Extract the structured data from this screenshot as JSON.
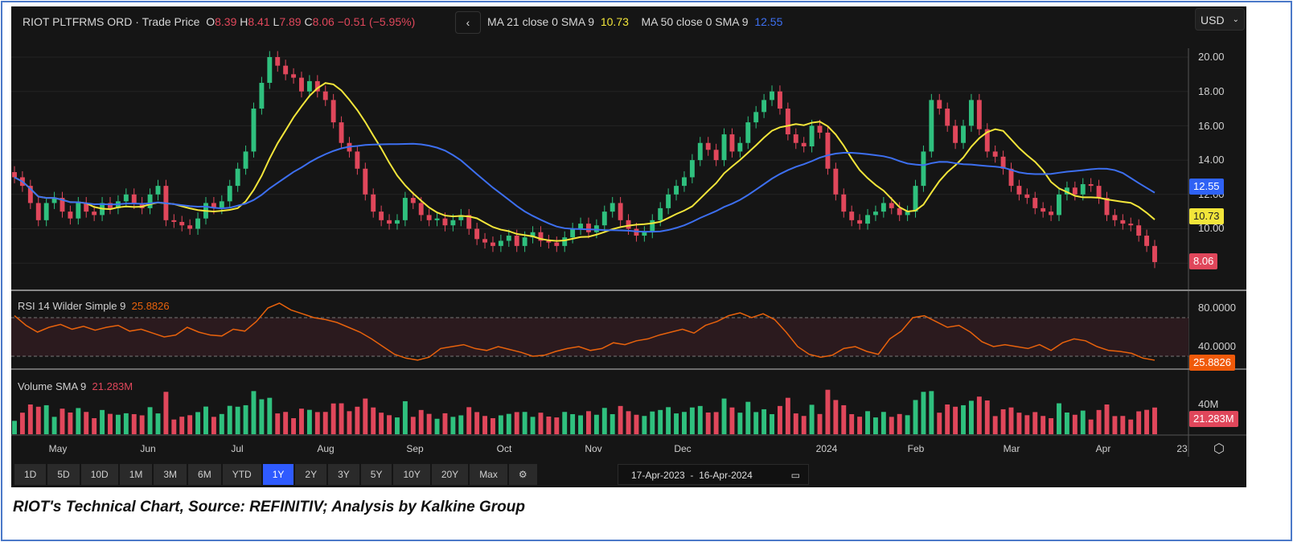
{
  "header": {
    "symbol": "RIOT PLTFRMS ORD",
    "price_type": "Trade Price",
    "o_label": "O",
    "o": "8.39",
    "h_label": "H",
    "h": "8.41",
    "l_label": "L",
    "l": "7.89",
    "c_label": "C",
    "c": "8.06",
    "change": "−0.51 (−5.95%)",
    "collapse": "‹",
    "ma1_label": "MA 21 close 0 SMA 9",
    "ma1_value": "10.73",
    "ma2_label": "MA 50 close 0 SMA 9",
    "ma2_value": "12.55"
  },
  "currency": "USD",
  "price_axis": [
    "20.00",
    "18.00",
    "16.00",
    "14.00",
    "12.00",
    "10.00"
  ],
  "price_tags": {
    "ma50": "12.55",
    "ma21": "10.73",
    "last": "8.06"
  },
  "rsi": {
    "label": "RSI 14 Wilder Simple 9",
    "value": "25.8826",
    "axis": [
      "80.0000",
      "40.0000"
    ]
  },
  "volume": {
    "label": "Volume SMA 9",
    "value": "21.283M",
    "axis": [
      "40M"
    ]
  },
  "time_axis": [
    "May",
    "Jun",
    "Jul",
    "Aug",
    "Sep",
    "Oct",
    "Nov",
    "Dec",
    "2024",
    "Feb",
    "Mar",
    "Apr",
    "23"
  ],
  "range_buttons": [
    "1D",
    "5D",
    "10D",
    "1M",
    "3M",
    "6M",
    "YTD",
    "1Y",
    "2Y",
    "3Y",
    "5Y",
    "10Y",
    "20Y",
    "Max"
  ],
  "active_range": "1Y",
  "date_range": {
    "from": "17-Apr-2023",
    "sep": "-",
    "to": "16-Apr-2024"
  },
  "caption": "RIOT's Technical Chart, Source: REFINITIV; Analysis by Kalkine Group",
  "colors": {
    "up": "#2fc07e",
    "down": "#e0475b",
    "ma21": "#f2e53a",
    "ma50": "#3d6ff0",
    "rsi": "#e8620c"
  },
  "chart_data": {
    "type": "candlestick",
    "ylim": [
      7.5,
      21
    ],
    "closes": [
      13,
      12.5,
      11.5,
      10.5,
      11.5,
      11.8,
      11,
      10.6,
      11.5,
      11,
      10.8,
      11.5,
      11.2,
      11.6,
      12,
      11.5,
      11.2,
      12,
      12.5,
      10.5,
      10.4,
      10.2,
      10,
      10.6,
      11.5,
      11.2,
      11.6,
      12.5,
      13.5,
      14.5,
      17,
      18.5,
      20,
      19.5,
      19,
      18.8,
      18,
      18.6,
      18,
      17.5,
      16.2,
      15,
      14.5,
      13.5,
      12,
      11,
      10.5,
      10.3,
      10.5,
      11.8,
      11.5,
      10.8,
      10.5,
      10.6,
      10.2,
      10.5,
      10.8,
      10,
      9.4,
      9.2,
      9,
      9.3,
      9.6,
      9,
      9.5,
      9.8,
      9.3,
      9.2,
      9,
      9.5,
      10,
      10.3,
      9.8,
      10.2,
      11,
      11.5,
      10.5,
      10,
      9.6,
      9.8,
      10.5,
      11.2,
      12,
      12.5,
      13,
      14,
      15,
      14.6,
      14,
      15.5,
      14.5,
      15,
      16.2,
      16.8,
      17.5,
      18,
      17,
      15.5,
      15,
      14.8,
      16,
      15.6,
      13.5,
      12,
      11,
      10.5,
      10.3,
      10.8,
      11,
      11.5,
      11.2,
      10.8,
      11,
      12.5,
      14.5,
      17.5,
      17,
      16,
      15,
      16,
      17.5,
      15.8,
      14.5,
      14.2,
      13.5,
      12.5,
      12,
      11.8,
      11.2,
      11,
      10.8,
      12,
      12.4,
      12,
      12.6,
      12.5,
      11.8,
      10.8,
      10.5,
      10.3,
      10.2,
      9.6,
      9,
      8.06
    ],
    "rsi_values": [
      72,
      62,
      55,
      60,
      63,
      58,
      61,
      57,
      60,
      62,
      56,
      58,
      54,
      50,
      52,
      60,
      55,
      52,
      51,
      58,
      56,
      66,
      80,
      85,
      78,
      74,
      70,
      68,
      65,
      60,
      55,
      48,
      40,
      32,
      28,
      26,
      29,
      38,
      40,
      42,
      38,
      36,
      40,
      37,
      34,
      30,
      31,
      35,
      38,
      40,
      36,
      38,
      44,
      42,
      46,
      48,
      52,
      55,
      58,
      54,
      62,
      66,
      72,
      75,
      70,
      74,
      68,
      55,
      40,
      32,
      29,
      31,
      38,
      40,
      35,
      32,
      48,
      56,
      70,
      72,
      66,
      60,
      62,
      55,
      45,
      40,
      42,
      40,
      38,
      42,
      36,
      44,
      48,
      46,
      40,
      36,
      35,
      33,
      28,
      25.88
    ]
  }
}
